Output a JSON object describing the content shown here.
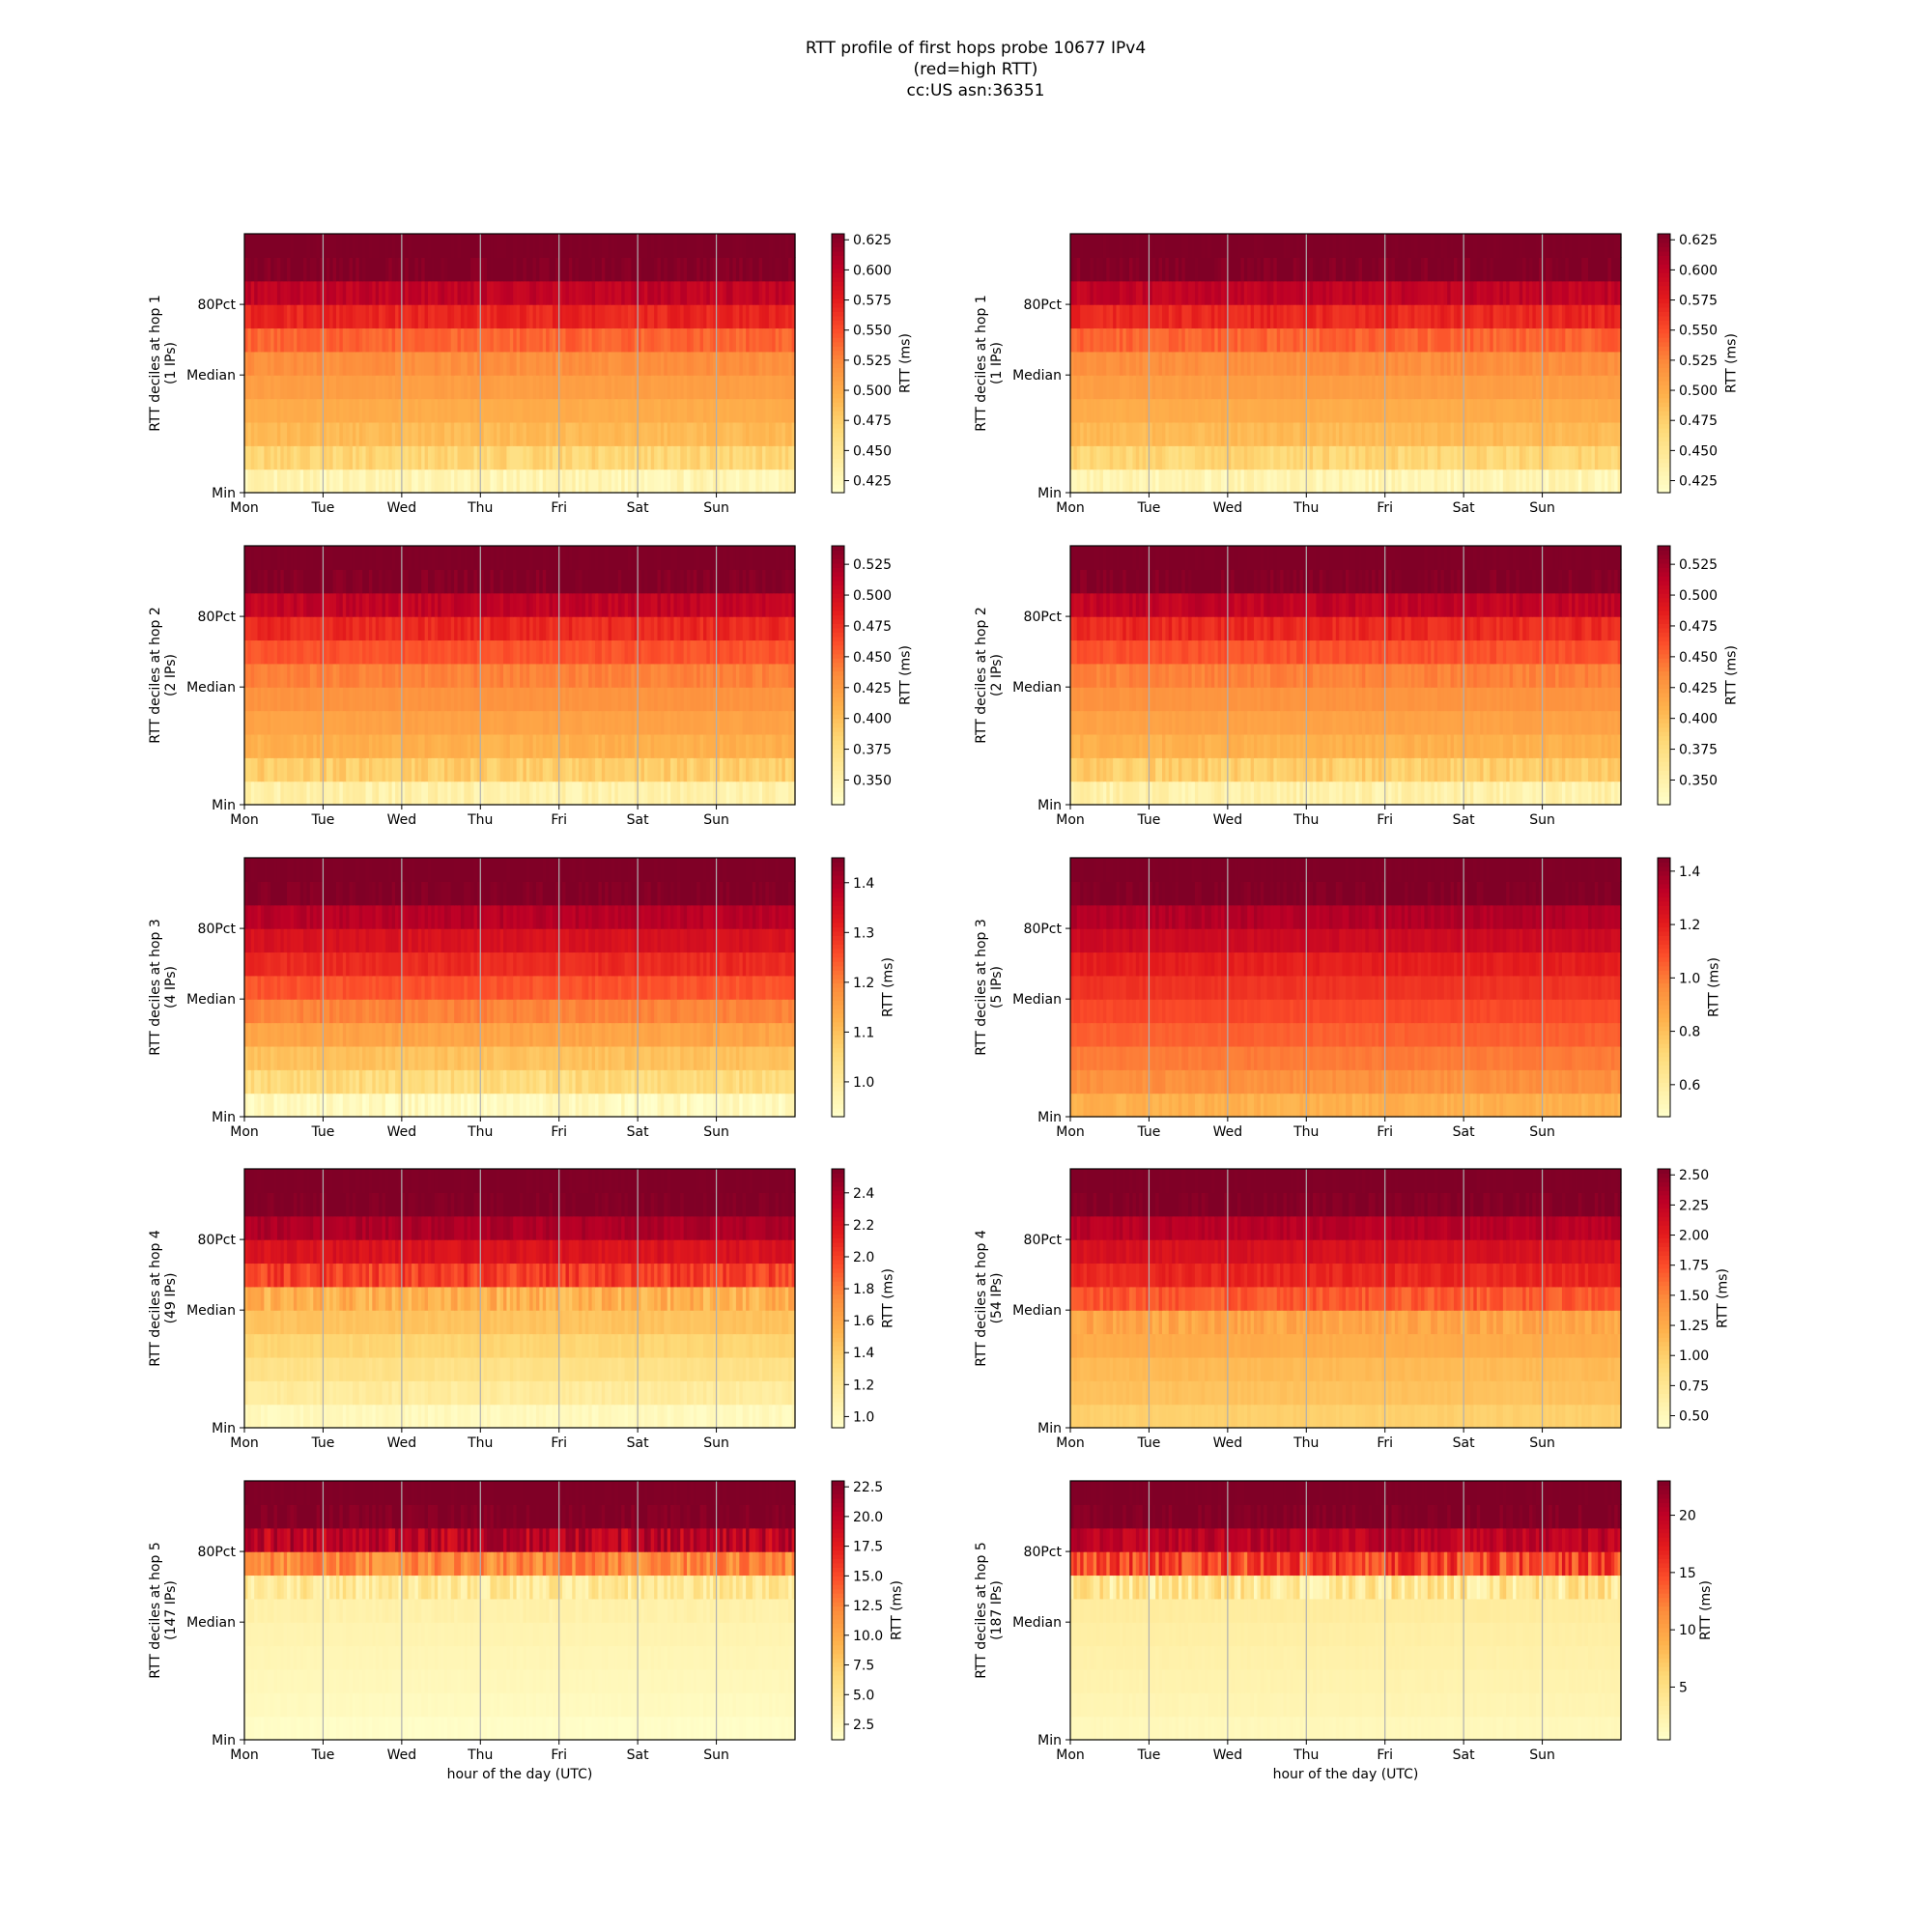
{
  "figure": {
    "title_lines": [
      "RTT profile of first hops probe 10677 IPv4",
      "(red=high RTT)",
      "cc:US asn:36351"
    ]
  },
  "colormap": [
    "#ffffcc",
    "#ffeda0",
    "#fed976",
    "#feb24c",
    "#fd8d3c",
    "#fc4e2a",
    "#e31a1c",
    "#bd0026",
    "#800026"
  ],
  "chart_data": [
    {
      "type": "heatmap",
      "hop": 1,
      "ylabel_lines": [
        "RTT deciles at hop 1",
        "(1 IPs)"
      ],
      "xlabel": "",
      "x_categories": [
        "Mon",
        "Tue",
        "Wed",
        "Thu",
        "Fri",
        "Sat",
        "Sun"
      ],
      "y_tick_labels": [
        "Min",
        "Median",
        "80Pct"
      ],
      "deciles_ms": [
        0.43,
        0.47,
        0.49,
        0.5,
        0.51,
        0.52,
        0.54,
        0.57,
        0.6,
        0.63,
        0.63
      ],
      "colorbar": {
        "label": "RTT (ms)",
        "range": [
          0.415,
          0.63
        ],
        "ticks": [
          "0.425",
          "0.450",
          "0.475",
          "0.500",
          "0.525",
          "0.550",
          "0.575",
          "0.600",
          "0.625"
        ]
      }
    },
    {
      "type": "heatmap",
      "hop": 1,
      "ylabel_lines": [
        "RTT deciles at hop 1",
        "(1 IPs)"
      ],
      "xlabel": "",
      "x_categories": [
        "Mon",
        "Tue",
        "Wed",
        "Thu",
        "Fri",
        "Sat",
        "Sun"
      ],
      "y_tick_labels": [
        "Min",
        "Median",
        "80Pct"
      ],
      "deciles_ms": [
        0.43,
        0.47,
        0.49,
        0.5,
        0.51,
        0.52,
        0.54,
        0.57,
        0.6,
        0.63,
        0.63
      ],
      "colorbar": {
        "label": "RTT (ms)",
        "range": [
          0.415,
          0.63
        ],
        "ticks": [
          "0.425",
          "0.450",
          "0.475",
          "0.500",
          "0.525",
          "0.550",
          "0.575",
          "0.600",
          "0.625"
        ]
      }
    },
    {
      "type": "heatmap",
      "hop": 2,
      "ylabel_lines": [
        "RTT deciles at hop 2",
        "(2 IPs)"
      ],
      "xlabel": "",
      "x_categories": [
        "Mon",
        "Tue",
        "Wed",
        "Thu",
        "Fri",
        "Sat",
        "Sun"
      ],
      "y_tick_labels": [
        "Min",
        "Median",
        "80Pct"
      ],
      "deciles_ms": [
        0.35,
        0.39,
        0.41,
        0.42,
        0.43,
        0.44,
        0.46,
        0.48,
        0.51,
        0.54,
        0.54
      ],
      "colorbar": {
        "label": "RTT (ms)",
        "range": [
          0.33,
          0.54
        ],
        "ticks": [
          "0.350",
          "0.375",
          "0.400",
          "0.425",
          "0.450",
          "0.475",
          "0.500",
          "0.525"
        ]
      }
    },
    {
      "type": "heatmap",
      "hop": 2,
      "ylabel_lines": [
        "RTT deciles at hop 2",
        "(2 IPs)"
      ],
      "xlabel": "",
      "x_categories": [
        "Mon",
        "Tue",
        "Wed",
        "Thu",
        "Fri",
        "Sat",
        "Sun"
      ],
      "y_tick_labels": [
        "Min",
        "Median",
        "80Pct"
      ],
      "deciles_ms": [
        0.35,
        0.39,
        0.41,
        0.42,
        0.43,
        0.44,
        0.46,
        0.48,
        0.51,
        0.54,
        0.54
      ],
      "colorbar": {
        "label": "RTT (ms)",
        "range": [
          0.33,
          0.54
        ],
        "ticks": [
          "0.350",
          "0.375",
          "0.400",
          "0.425",
          "0.450",
          "0.475",
          "0.500",
          "0.525"
        ]
      }
    },
    {
      "type": "heatmap",
      "hop": 3,
      "ylabel_lines": [
        "RTT deciles at hop 3",
        "(4 IPs)"
      ],
      "xlabel": "",
      "x_categories": [
        "Mon",
        "Tue",
        "Wed",
        "Thu",
        "Fri",
        "Sat",
        "Sun"
      ],
      "y_tick_labels": [
        "Min",
        "Median",
        "80Pct"
      ],
      "deciles_ms": [
        0.95,
        1.05,
        1.1,
        1.15,
        1.2,
        1.25,
        1.3,
        1.34,
        1.39,
        1.45,
        1.45
      ],
      "colorbar": {
        "label": "RTT (ms)",
        "range": [
          0.93,
          1.45
        ],
        "ticks": [
          "1.0",
          "1.1",
          "1.2",
          "1.3",
          "1.4"
        ]
      }
    },
    {
      "type": "heatmap",
      "hop": 3,
      "ylabel_lines": [
        "RTT deciles at hop 3",
        "(5 IPs)"
      ],
      "xlabel": "",
      "x_categories": [
        "Mon",
        "Tue",
        "Wed",
        "Thu",
        "Fri",
        "Sat",
        "Sun"
      ],
      "y_tick_labels": [
        "Min",
        "Median",
        "80Pct"
      ],
      "deciles_ms": [
        0.85,
        0.95,
        1.0,
        1.05,
        1.1,
        1.15,
        1.2,
        1.28,
        1.35,
        1.45,
        1.45
      ],
      "colorbar": {
        "label": "RTT (ms)",
        "range": [
          0.48,
          1.45
        ],
        "ticks": [
          "0.6",
          "0.8",
          "1.0",
          "1.2",
          "1.4"
        ]
      }
    },
    {
      "type": "heatmap",
      "hop": 4,
      "ylabel_lines": [
        "RTT deciles at hop 4",
        "(49 IPs)"
      ],
      "xlabel": "",
      "x_categories": [
        "Mon",
        "Tue",
        "Wed",
        "Thu",
        "Fri",
        "Sat",
        "Sun"
      ],
      "y_tick_labels": [
        "Min",
        "Median",
        "80Pct"
      ],
      "deciles_ms": [
        1.0,
        1.15,
        1.25,
        1.35,
        1.45,
        1.55,
        2.0,
        2.2,
        2.4,
        2.55,
        2.55
      ],
      "colorbar": {
        "label": "RTT (ms)",
        "range": [
          0.93,
          2.55
        ],
        "ticks": [
          "1.0",
          "1.2",
          "1.4",
          "1.6",
          "1.8",
          "2.0",
          "2.2",
          "2.4"
        ]
      }
    },
    {
      "type": "heatmap",
      "hop": 4,
      "ylabel_lines": [
        "RTT deciles at hop 4",
        "(54 IPs)"
      ],
      "xlabel": "",
      "x_categories": [
        "Mon",
        "Tue",
        "Wed",
        "Thu",
        "Fri",
        "Sat",
        "Sun"
      ],
      "y_tick_labels": [
        "Min",
        "Median",
        "80Pct"
      ],
      "deciles_ms": [
        1.0,
        1.1,
        1.15,
        1.25,
        1.3,
        1.7,
        1.95,
        2.1,
        2.3,
        2.55,
        2.55
      ],
      "colorbar": {
        "label": "RTT (ms)",
        "range": [
          0.4,
          2.55
        ],
        "ticks": [
          "0.50",
          "0.75",
          "1.00",
          "1.25",
          "1.50",
          "1.75",
          "2.00",
          "2.25",
          "2.50"
        ]
      }
    },
    {
      "type": "heatmap",
      "hop": 5,
      "ylabel_lines": [
        "RTT deciles at hop 5",
        "(147 IPs)"
      ],
      "xlabel": "hour of the day (UTC)",
      "x_categories": [
        "Mon",
        "Tue",
        "Wed",
        "Thu",
        "Fri",
        "Sat",
        "Sun"
      ],
      "y_tick_labels": [
        "Min",
        "Median",
        "80Pct"
      ],
      "deciles_ms": [
        1.5,
        2.0,
        2.3,
        2.6,
        2.9,
        3.3,
        4.5,
        12.0,
        20.0,
        23.0,
        23.0
      ],
      "colorbar": {
        "label": "RTT (ms)",
        "range": [
          1.2,
          23.0
        ],
        "ticks": [
          "2.5",
          "5.0",
          "7.5",
          "10.0",
          "12.5",
          "15.0",
          "17.5",
          "20.0",
          "22.5"
        ]
      }
    },
    {
      "type": "heatmap",
      "hop": 5,
      "ylabel_lines": [
        "RTT deciles at hop 5",
        "(187 IPs)"
      ],
      "xlabel": "hour of the day (UTC)",
      "x_categories": [
        "Mon",
        "Tue",
        "Wed",
        "Thu",
        "Fri",
        "Sat",
        "Sun"
      ],
      "y_tick_labels": [
        "Min",
        "Median",
        "80Pct"
      ],
      "deciles_ms": [
        1.5,
        2.0,
        2.3,
        2.6,
        2.9,
        3.3,
        4.0,
        15.0,
        20.0,
        23.0,
        23.0
      ],
      "colorbar": {
        "label": "RTT (ms)",
        "range": [
          0.4,
          23.0
        ],
        "ticks": [
          "5",
          "10",
          "15",
          "20"
        ]
      }
    }
  ]
}
